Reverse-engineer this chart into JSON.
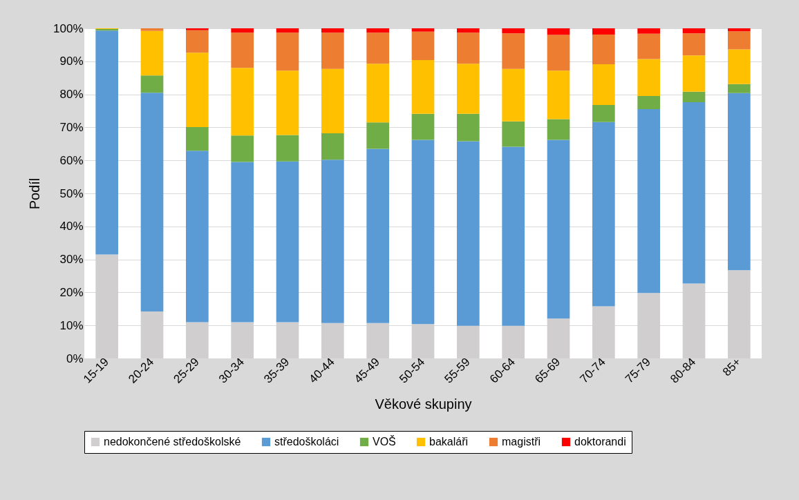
{
  "chart_data": {
    "type": "bar",
    "stacked": true,
    "xlabel": "Věkové skupiny",
    "ylabel": "Podíl",
    "categories": [
      "15-19",
      "20-24",
      "25-29",
      "30-34",
      "35-39",
      "40-44",
      "45-49",
      "50-54",
      "55-59",
      "60-64",
      "65-69",
      "70-74",
      "75-79",
      "80-84",
      "85+"
    ],
    "series": [
      {
        "name": "nedokončené středoškolské",
        "color": "#d0cece",
        "values": [
          31.5,
          14.2,
          11,
          11,
          11,
          10.7,
          10.7,
          10.4,
          9.9,
          9.9,
          12.1,
          15.8,
          19.8,
          22.7,
          26.7
        ]
      },
      {
        "name": "středoškoláci",
        "color": "#5b9bd5",
        "values": [
          67.8,
          66.3,
          51.9,
          48.5,
          48.7,
          49.5,
          52.8,
          55.8,
          55.9,
          54.2,
          54.1,
          55.8,
          55.7,
          54.9,
          53.7
        ]
      },
      {
        "name": "VOŠ",
        "color": "#70ad47",
        "values": [
          0.5,
          5.2,
          7.2,
          8,
          8,
          8,
          8,
          7.9,
          8.3,
          7.7,
          6.3,
          5.2,
          4,
          3.2,
          2.7
        ]
      },
      {
        "name": "bakaláři",
        "color": "#ffc000",
        "values": [
          0.2,
          13.5,
          22.5,
          20.5,
          19.5,
          19.5,
          17.8,
          16.3,
          15.2,
          15.9,
          14.7,
          12.3,
          11.2,
          11,
          10.5
        ]
      },
      {
        "name": "magistři",
        "color": "#ed7d31",
        "values": [
          0,
          0.8,
          6.8,
          10.7,
          11.5,
          11,
          9.4,
          8.6,
          9.4,
          10.8,
          10.8,
          9,
          7.7,
          6.7,
          5.5
        ]
      },
      {
        "name": "doktorandi",
        "color": "#ff0000",
        "values": [
          0,
          0,
          0.6,
          1.3,
          1.3,
          1.3,
          1.3,
          1,
          1.3,
          1.5,
          2,
          1.9,
          1.6,
          1.5,
          0.9
        ]
      }
    ],
    "ylim": [
      0,
      100
    ],
    "yticks": [
      {
        "value": 0,
        "label": "0%"
      },
      {
        "value": 10,
        "label": "10%"
      },
      {
        "value": 20,
        "label": "20%"
      },
      {
        "value": 30,
        "label": "30%"
      },
      {
        "value": 40,
        "label": "40%"
      },
      {
        "value": 50,
        "label": "50%"
      },
      {
        "value": 60,
        "label": "60%"
      },
      {
        "value": 70,
        "label": "70%"
      },
      {
        "value": 80,
        "label": "80%"
      },
      {
        "value": 90,
        "label": "90%"
      },
      {
        "value": 100,
        "label": "100%"
      }
    ],
    "grid": "y",
    "legend": "bottom"
  }
}
